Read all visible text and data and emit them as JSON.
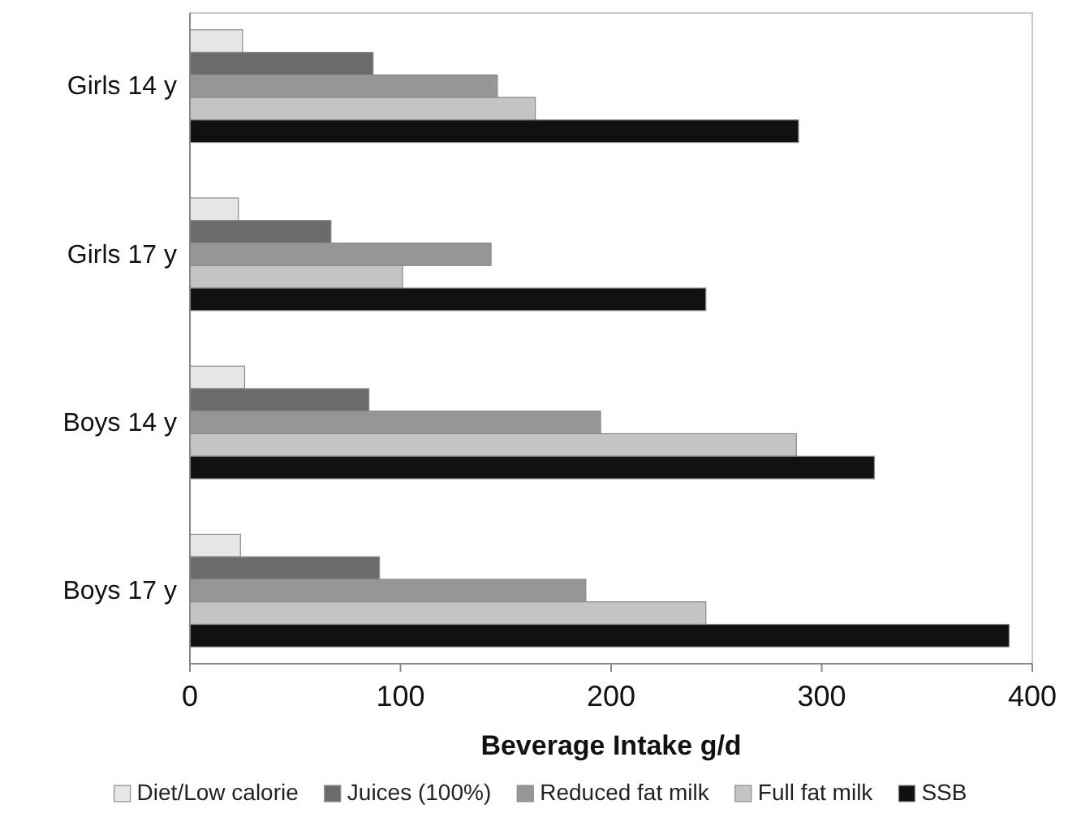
{
  "chart_data": {
    "type": "bar",
    "orientation": "horizontal",
    "xlabel": "Beverage Intake g/d",
    "categories": [
      "Girls 14 y",
      "Girls 17 y",
      "Boys 14 y",
      "Boys 17 y"
    ],
    "series": [
      {
        "name": "Diet/Low calorie",
        "color": "#e6e6e6",
        "values": [
          25,
          23,
          26,
          24
        ]
      },
      {
        "name": "Juices (100%)",
        "color": "#6b6b6b",
        "values": [
          87,
          67,
          85,
          90
        ]
      },
      {
        "name": "Reduced fat milk",
        "color": "#969696",
        "values": [
          146,
          143,
          195,
          188
        ]
      },
      {
        "name": "Full fat milk",
        "color": "#c4c4c4",
        "values": [
          164,
          101,
          288,
          245
        ]
      },
      {
        "name": "SSB",
        "color": "#111111",
        "values": [
          289,
          245,
          325,
          389
        ]
      }
    ],
    "xlim": [
      0,
      400
    ],
    "xticks": [
      0,
      100,
      200,
      300,
      400
    ],
    "grid": false,
    "legend": "bottom"
  }
}
